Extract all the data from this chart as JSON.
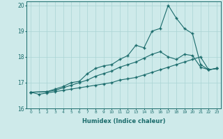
{
  "xlabel": "Humidex (Indice chaleur)",
  "ylabel": "",
  "xlim": [
    -0.5,
    23.5
  ],
  "ylim": [
    16,
    20.15
  ],
  "yticks": [
    16,
    17,
    18,
    19,
    20
  ],
  "xticks": [
    0,
    1,
    2,
    3,
    4,
    5,
    6,
    7,
    8,
    9,
    10,
    11,
    12,
    13,
    14,
    15,
    16,
    17,
    18,
    19,
    20,
    21,
    22,
    23
  ],
  "background_color": "#ceeaea",
  "line_color": "#1a6b6b",
  "grid_color": "#aad4d4",
  "series": [
    {
      "x": [
        0,
        1,
        2,
        3,
        4,
        5,
        6,
        7,
        8,
        9,
        10,
        11,
        12,
        13,
        14,
        15,
        16,
        17,
        18,
        19,
        20,
        21,
        22,
        23
      ],
      "y": [
        16.63,
        16.55,
        16.6,
        16.65,
        16.7,
        16.75,
        16.8,
        16.85,
        16.9,
        16.95,
        17.0,
        17.1,
        17.15,
        17.2,
        17.3,
        17.4,
        17.5,
        17.6,
        17.7,
        17.8,
        17.9,
        18.0,
        17.5,
        17.55
      ]
    },
    {
      "x": [
        0,
        2,
        3,
        4,
        5,
        6,
        7,
        8,
        9,
        10,
        11,
        12,
        13,
        14,
        15,
        16,
        17,
        18,
        19,
        20,
        21,
        22,
        23
      ],
      "y": [
        16.63,
        16.65,
        16.7,
        16.8,
        16.9,
        17.0,
        17.1,
        17.25,
        17.35,
        17.45,
        17.6,
        17.7,
        17.8,
        17.95,
        18.1,
        18.2,
        18.0,
        17.9,
        18.1,
        18.05,
        17.6,
        17.5,
        17.55
      ]
    },
    {
      "x": [
        0,
        2,
        3,
        4,
        5,
        6,
        7,
        8,
        9,
        10,
        11,
        12,
        13,
        14,
        15,
        16,
        17,
        18,
        19,
        20,
        21,
        22,
        23
      ],
      "y": [
        16.63,
        16.65,
        16.75,
        16.85,
        17.0,
        17.05,
        17.35,
        17.55,
        17.65,
        17.7,
        17.9,
        18.05,
        18.45,
        18.35,
        19.0,
        19.1,
        20.0,
        19.5,
        19.1,
        18.9,
        17.7,
        17.5,
        17.55
      ]
    }
  ]
}
